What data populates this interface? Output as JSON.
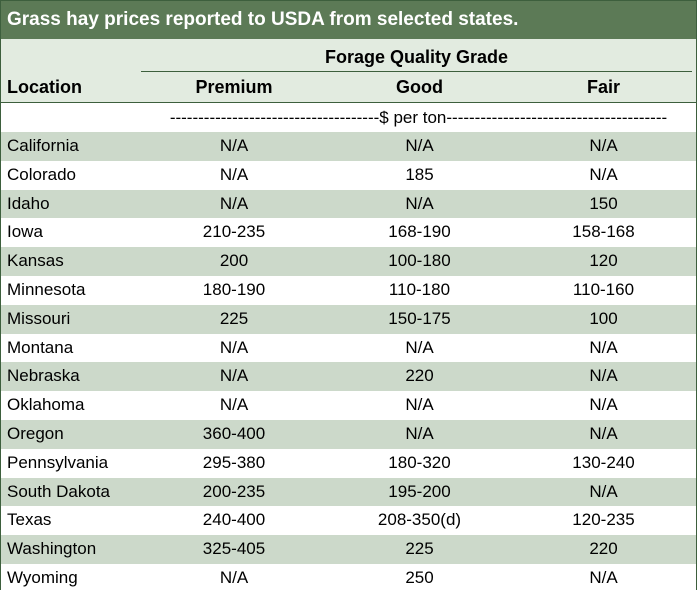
{
  "title": "Grass hay prices reported to USDA from selected states.",
  "group_header": "Forage Quality Grade",
  "columns": {
    "location": "Location",
    "premium": "Premium",
    "good": "Good",
    "fair": "Fair"
  },
  "units": "-------------------------------------$ per ton---------------------------------------",
  "rows": [
    {
      "location": "California",
      "premium": "N/A",
      "good": "N/A",
      "fair": "N/A"
    },
    {
      "location": "Colorado",
      "premium": "N/A",
      "good": "185",
      "fair": "N/A"
    },
    {
      "location": "Idaho",
      "premium": "N/A",
      "good": "N/A",
      "fair": "150"
    },
    {
      "location": "Iowa",
      "premium": "210-235",
      "good": "168-190",
      "fair": "158-168"
    },
    {
      "location": "Kansas",
      "premium": "200",
      "good": "100-180",
      "fair": "120"
    },
    {
      "location": "Minnesota",
      "premium": "180-190",
      "good": "110-180",
      "fair": "110-160"
    },
    {
      "location": "Missouri",
      "premium": "225",
      "good": "150-175",
      "fair": "100"
    },
    {
      "location": "Montana",
      "premium": "N/A",
      "good": "N/A",
      "fair": "N/A"
    },
    {
      "location": "Nebraska",
      "premium": "N/A",
      "good": "220",
      "fair": "N/A"
    },
    {
      "location": "Oklahoma",
      "premium": "N/A",
      "good": "N/A",
      "fair": "N/A"
    },
    {
      "location": "Oregon",
      "premium": "360-400",
      "good": "N/A",
      "fair": "N/A"
    },
    {
      "location": "Pennsylvania",
      "premium": "295-380",
      "good": "180-320",
      "fair": "130-240"
    },
    {
      "location": "South Dakota",
      "premium": "200-235",
      "good": "195-200",
      "fair": "N/A"
    },
    {
      "location": "Texas",
      "premium": "240-400",
      "good": "208-350(d)",
      "fair": "120-235"
    },
    {
      "location": "Washington",
      "premium": "325-405",
      "good": "225",
      "fair": "220"
    },
    {
      "location": "Wyoming",
      "premium": "N/A",
      "good": "250",
      "fair": "N/A"
    }
  ],
  "colors": {
    "title_bg": "#5c7a56",
    "border": "#3d5f3d",
    "row_shade": "#ccd9ca",
    "row_plain": "#ffffff"
  }
}
